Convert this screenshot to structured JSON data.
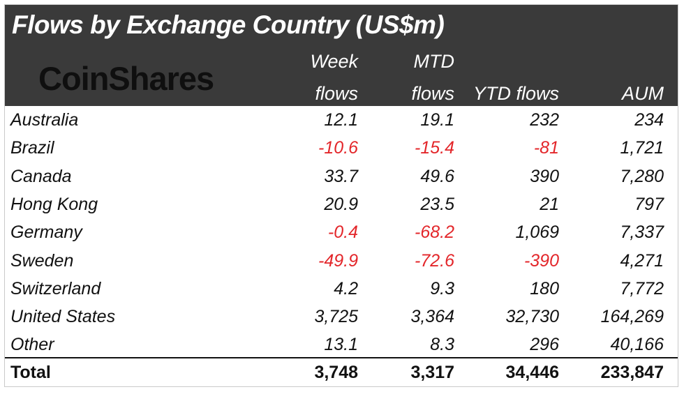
{
  "chart_data": {
    "type": "table",
    "title": "Flows by Exchange Country (US$m)",
    "brand": "CoinShares",
    "columns": [
      {
        "line1": "Week",
        "line2": "flows"
      },
      {
        "line1": "MTD",
        "line2": "flows"
      },
      {
        "line1": "",
        "line2": "YTD flows"
      },
      {
        "line1": "",
        "line2": "AUM"
      }
    ],
    "rows": [
      {
        "name": "Australia",
        "values": [
          "12.1",
          "19.1",
          "232",
          "234"
        ]
      },
      {
        "name": "Brazil",
        "values": [
          "-10.6",
          "-15.4",
          "-81",
          "1,721"
        ]
      },
      {
        "name": "Canada",
        "values": [
          "33.7",
          "49.6",
          "390",
          "7,280"
        ]
      },
      {
        "name": "Hong Kong",
        "values": [
          "20.9",
          "23.5",
          "21",
          "797"
        ]
      },
      {
        "name": "Germany",
        "values": [
          "-0.4",
          "-68.2",
          "1,069",
          "7,337"
        ]
      },
      {
        "name": "Sweden",
        "values": [
          "-49.9",
          "-72.6",
          "-390",
          "4,271"
        ]
      },
      {
        "name": "Switzerland",
        "values": [
          "4.2",
          "9.3",
          "180",
          "7,772"
        ]
      },
      {
        "name": "United States",
        "values": [
          "3,725",
          "3,364",
          "32,730",
          "164,269"
        ]
      },
      {
        "name": "Other",
        "values": [
          "13.1",
          "8.3",
          "296",
          "40,166"
        ]
      }
    ],
    "total": {
      "name": "Total",
      "values": [
        "3,748",
        "3,317",
        "34,446",
        "233,847"
      ]
    }
  },
  "colors": {
    "header_bg": "#3a3a3a",
    "negative": "#e3262a",
    "text": "#111111"
  }
}
